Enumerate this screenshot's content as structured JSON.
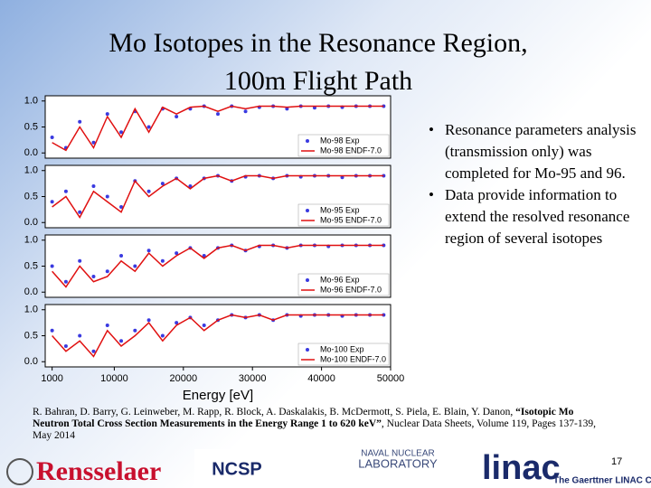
{
  "header": {
    "title_lines": [
      "Mo Isotopes in the Resonance Region,",
      "100m Flight Path"
    ]
  },
  "bullets": [
    "Resonance parameters analysis (transmission only) was completed for Mo-95 and 96.",
    "Data provide information to extend the resolved resonance region of several isotopes"
  ],
  "reference": {
    "authors": "R. Bahran, D. Barry, G. Leinweber, M. Rapp, R. Block, A. Daskalakis, B. McDermott, S. Piela, E. Blain, Y. Danon, ",
    "title": "“Isotopic Mo Neutron Total Cross Section Measurements in the Energy Range 1 to 620 keV”",
    "source": ", Nuclear Data Sheets, Volume 119, Pages 137-139, May 2014"
  },
  "footer": {
    "logo_left": "Rensselaer",
    "logo_ncsp": "NCSP",
    "logo_naval": [
      "NAVAL NUCLEAR",
      "LABORATORY"
    ],
    "logo_linac": "linac",
    "linac_center": "The Gaerttner LINAC Center",
    "page_number": "17"
  },
  "chart_data": [
    {
      "type": "line",
      "legend": "lower right",
      "xlim": [
        0,
        50000
      ],
      "ylim": [
        -0.1,
        1.1
      ],
      "yticks": [
        {
          "value": 0,
          "label": "0.0"
        },
        {
          "value": 0.5,
          "label": "0.5"
        },
        {
          "value": 1,
          "label": "1.0"
        }
      ],
      "x": [
        1000,
        3000,
        5000,
        7000,
        9000,
        11000,
        13000,
        15000,
        17000,
        19000,
        21000,
        23000,
        25000,
        27000,
        29000,
        31000,
        33000,
        35000,
        37000,
        39000,
        41000,
        43000,
        45000,
        47000,
        49000
      ],
      "series": [
        {
          "name": "Mo-98 Exp",
          "color": "#3a3ae0",
          "values": [
            0.3,
            0.1,
            0.6,
            0.2,
            0.75,
            0.4,
            0.8,
            0.5,
            0.85,
            0.7,
            0.85,
            0.9,
            0.75,
            0.9,
            0.8,
            0.88,
            0.9,
            0.85,
            0.9,
            0.87,
            0.9,
            0.88,
            0.9,
            0.9,
            0.9
          ]
        },
        {
          "name": "Mo-98 ENDF-7.0",
          "color": "#e01010",
          "values": [
            0.2,
            0.05,
            0.5,
            0.1,
            0.7,
            0.3,
            0.85,
            0.4,
            0.88,
            0.75,
            0.88,
            0.9,
            0.8,
            0.9,
            0.85,
            0.9,
            0.9,
            0.88,
            0.9,
            0.9,
            0.9,
            0.9,
            0.9,
            0.9,
            0.9
          ]
        }
      ]
    },
    {
      "type": "line",
      "legend": "lower right",
      "xlim": [
        0,
        50000
      ],
      "ylim": [
        -0.1,
        1.1
      ],
      "yticks": [
        {
          "value": 0,
          "label": "0.0"
        },
        {
          "value": 0.5,
          "label": "0.5"
        },
        {
          "value": 1,
          "label": "1.0"
        }
      ],
      "x": [
        1000,
        3000,
        5000,
        7000,
        9000,
        11000,
        13000,
        15000,
        17000,
        19000,
        21000,
        23000,
        25000,
        27000,
        29000,
        31000,
        33000,
        35000,
        37000,
        39000,
        41000,
        43000,
        45000,
        47000,
        49000
      ],
      "series": [
        {
          "name": "Mo-95 Exp",
          "color": "#3a3ae0",
          "values": [
            0.4,
            0.6,
            0.2,
            0.7,
            0.5,
            0.3,
            0.8,
            0.6,
            0.75,
            0.85,
            0.7,
            0.85,
            0.9,
            0.8,
            0.88,
            0.9,
            0.85,
            0.9,
            0.88,
            0.9,
            0.9,
            0.87,
            0.9,
            0.9,
            0.9
          ]
        },
        {
          "name": "Mo-95 ENDF-7.0",
          "color": "#e01010",
          "values": [
            0.3,
            0.5,
            0.1,
            0.6,
            0.4,
            0.2,
            0.8,
            0.5,
            0.7,
            0.85,
            0.65,
            0.85,
            0.9,
            0.8,
            0.9,
            0.9,
            0.85,
            0.9,
            0.9,
            0.9,
            0.9,
            0.9,
            0.9,
            0.9,
            0.9
          ]
        }
      ]
    },
    {
      "type": "line",
      "legend": "lower right",
      "xlim": [
        0,
        50000
      ],
      "ylim": [
        -0.1,
        1.1
      ],
      "yticks": [
        {
          "value": 0,
          "label": "0.0"
        },
        {
          "value": 0.5,
          "label": "0.5"
        },
        {
          "value": 1,
          "label": "1.0"
        }
      ],
      "x": [
        1000,
        3000,
        5000,
        7000,
        9000,
        11000,
        13000,
        15000,
        17000,
        19000,
        21000,
        23000,
        25000,
        27000,
        29000,
        31000,
        33000,
        35000,
        37000,
        39000,
        41000,
        43000,
        45000,
        47000,
        49000
      ],
      "series": [
        {
          "name": "Mo-96 Exp",
          "color": "#3a3ae0",
          "values": [
            0.5,
            0.2,
            0.6,
            0.3,
            0.4,
            0.7,
            0.5,
            0.8,
            0.6,
            0.75,
            0.85,
            0.7,
            0.85,
            0.9,
            0.8,
            0.88,
            0.9,
            0.85,
            0.9,
            0.9,
            0.88,
            0.9,
            0.9,
            0.9,
            0.9
          ]
        },
        {
          "name": "Mo-96 ENDF-7.0",
          "color": "#e01010",
          "values": [
            0.4,
            0.1,
            0.5,
            0.2,
            0.3,
            0.6,
            0.4,
            0.75,
            0.5,
            0.7,
            0.85,
            0.65,
            0.85,
            0.9,
            0.8,
            0.9,
            0.9,
            0.85,
            0.9,
            0.9,
            0.9,
            0.9,
            0.9,
            0.9,
            0.9
          ]
        }
      ]
    },
    {
      "type": "line",
      "legend": "lower right",
      "xlim": [
        0,
        50000
      ],
      "ylim": [
        -0.1,
        1.1
      ],
      "xlabel": "Energy [eV]",
      "xticks": [
        1000,
        10000,
        20000,
        30000,
        40000,
        50000
      ],
      "yticks": [
        {
          "value": 0,
          "label": "0.0"
        },
        {
          "value": 0.5,
          "label": "0.5"
        },
        {
          "value": 1,
          "label": "1.0"
        }
      ],
      "x": [
        1000,
        3000,
        5000,
        7000,
        9000,
        11000,
        13000,
        15000,
        17000,
        19000,
        21000,
        23000,
        25000,
        27000,
        29000,
        31000,
        33000,
        35000,
        37000,
        39000,
        41000,
        43000,
        45000,
        47000,
        49000
      ],
      "series": [
        {
          "name": "Mo-100 Exp",
          "color": "#3a3ae0",
          "values": [
            0.6,
            0.3,
            0.5,
            0.2,
            0.7,
            0.4,
            0.6,
            0.8,
            0.5,
            0.75,
            0.85,
            0.7,
            0.8,
            0.9,
            0.85,
            0.9,
            0.8,
            0.9,
            0.88,
            0.9,
            0.9,
            0.88,
            0.9,
            0.9,
            0.9
          ]
        },
        {
          "name": "Mo-100 ENDF-7.0",
          "color": "#e01010",
          "values": [
            0.5,
            0.2,
            0.4,
            0.1,
            0.6,
            0.3,
            0.5,
            0.75,
            0.4,
            0.7,
            0.85,
            0.6,
            0.8,
            0.9,
            0.85,
            0.9,
            0.8,
            0.9,
            0.9,
            0.9,
            0.9,
            0.9,
            0.9,
            0.9,
            0.9
          ]
        }
      ]
    }
  ]
}
